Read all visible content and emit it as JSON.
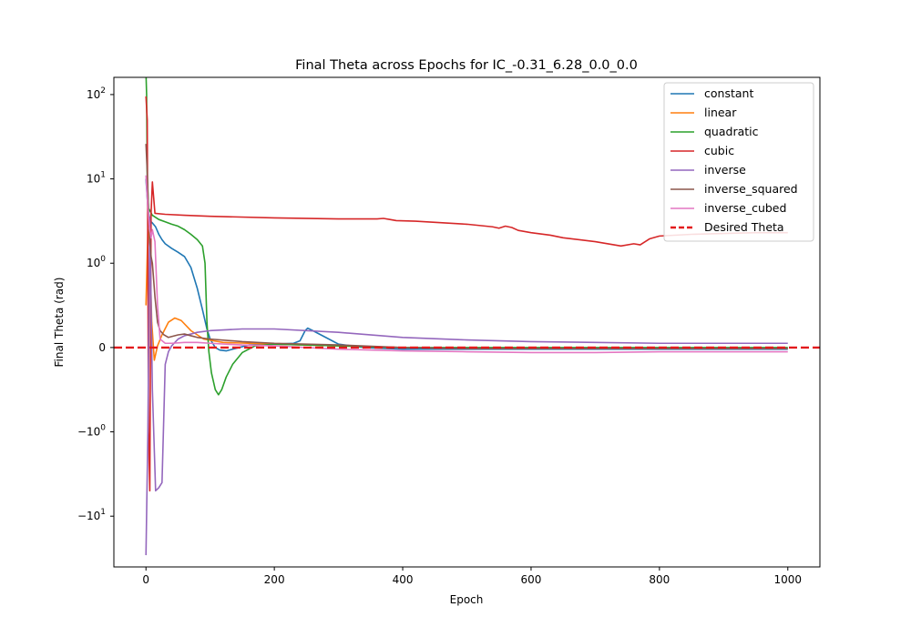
{
  "chart_data": {
    "type": "line",
    "title": "Final Theta across Epochs for IC_-0.31_6.28_0.0_0.0",
    "xlabel": "Epoch",
    "ylabel": "Final Theta (rad)",
    "yscale": "symlog",
    "xlim": [
      -50,
      1050
    ],
    "ylim": [
      -40,
      160
    ],
    "x_ticks": [
      0,
      200,
      400,
      600,
      800,
      1000
    ],
    "y_ticks": [
      {
        "value": 100,
        "label": "10",
        "exp": "2"
      },
      {
        "value": 10,
        "label": "10",
        "exp": "1"
      },
      {
        "value": 1,
        "label": "10",
        "exp": "0"
      },
      {
        "value": 0,
        "label": "0",
        "exp": ""
      },
      {
        "value": -1,
        "label": "−10",
        "exp": "0"
      },
      {
        "value": -10,
        "label": "−10",
        "exp": "1"
      }
    ],
    "legend_position": "upper-right",
    "grid": false,
    "series": [
      {
        "name": "constant",
        "color": "#1f77b4",
        "points": [
          [
            0,
            10
          ],
          [
            3,
            4.5
          ],
          [
            6,
            3.2
          ],
          [
            10,
            3
          ],
          [
            15,
            2.7
          ],
          [
            20,
            2.2
          ],
          [
            25,
            1.9
          ],
          [
            30,
            1.7
          ],
          [
            40,
            1.5
          ],
          [
            50,
            1.35
          ],
          [
            60,
            1.2
          ],
          [
            70,
            0.95
          ],
          [
            80,
            0.7
          ],
          [
            88,
            0.45
          ],
          [
            95,
            0.22
          ],
          [
            100,
            0.1
          ],
          [
            108,
            0.0
          ],
          [
            115,
            -0.03
          ],
          [
            125,
            -0.04
          ],
          [
            140,
            -0.01
          ],
          [
            160,
            0.03
          ],
          [
            200,
            0.04
          ],
          [
            230,
            0.05
          ],
          [
            240,
            0.08
          ],
          [
            248,
            0.2
          ],
          [
            252,
            0.23
          ],
          [
            260,
            0.2
          ],
          [
            280,
            0.12
          ],
          [
            300,
            0.04
          ],
          [
            340,
            0.0
          ],
          [
            400,
            -0.02
          ],
          [
            500,
            -0.02
          ],
          [
            600,
            -0.02
          ],
          [
            700,
            -0.02
          ],
          [
            800,
            -0.02
          ],
          [
            900,
            -0.02
          ],
          [
            1000,
            -0.02
          ]
        ]
      },
      {
        "name": "linear",
        "color": "#ff7f0e",
        "points": [
          [
            0,
            0.5
          ],
          [
            3,
            2.5
          ],
          [
            6,
            1.5
          ],
          [
            9,
            0.3
          ],
          [
            13,
            -0.15
          ],
          [
            18,
            0.02
          ],
          [
            25,
            0.15
          ],
          [
            35,
            0.3
          ],
          [
            45,
            0.35
          ],
          [
            55,
            0.32
          ],
          [
            70,
            0.2
          ],
          [
            90,
            0.1
          ],
          [
            120,
            0.06
          ],
          [
            200,
            0.04
          ],
          [
            300,
            0.02
          ],
          [
            400,
            0.0
          ],
          [
            500,
            -0.01
          ],
          [
            600,
            -0.01
          ],
          [
            700,
            -0.01
          ],
          [
            800,
            -0.01
          ],
          [
            900,
            -0.01
          ],
          [
            1000,
            -0.01
          ]
        ]
      },
      {
        "name": "quadratic",
        "color": "#2ca02c",
        "points": [
          [
            0,
            180
          ],
          [
            1,
            100
          ],
          [
            2,
            10
          ],
          [
            4,
            4.5
          ],
          [
            10,
            3.7
          ],
          [
            20,
            3.3
          ],
          [
            30,
            3.1
          ],
          [
            40,
            2.9
          ],
          [
            50,
            2.75
          ],
          [
            60,
            2.5
          ],
          [
            70,
            2.2
          ],
          [
            80,
            1.9
          ],
          [
            88,
            1.6
          ],
          [
            92,
            1.0
          ],
          [
            95,
            0.3
          ],
          [
            98,
            -0.05
          ],
          [
            102,
            -0.3
          ],
          [
            108,
            -0.5
          ],
          [
            113,
            -0.56
          ],
          [
            118,
            -0.5
          ],
          [
            125,
            -0.35
          ],
          [
            135,
            -0.2
          ],
          [
            150,
            -0.06
          ],
          [
            170,
            0.02
          ],
          [
            200,
            0.04
          ],
          [
            300,
            0.02
          ],
          [
            400,
            0.0
          ],
          [
            500,
            0.0
          ],
          [
            600,
            0.0
          ],
          [
            700,
            0.0
          ],
          [
            800,
            0.0
          ],
          [
            900,
            0.0
          ],
          [
            1000,
            0.0
          ]
        ]
      },
      {
        "name": "cubic",
        "color": "#d62728",
        "points": [
          [
            0,
            95
          ],
          [
            2,
            50
          ],
          [
            4,
            -1
          ],
          [
            6,
            -5
          ],
          [
            8,
            4
          ],
          [
            10,
            9.2
          ],
          [
            12,
            6
          ],
          [
            14,
            3.9
          ],
          [
            30,
            3.8
          ],
          [
            60,
            3.7
          ],
          [
            100,
            3.6
          ],
          [
            200,
            3.45
          ],
          [
            300,
            3.35
          ],
          [
            360,
            3.35
          ],
          [
            370,
            3.4
          ],
          [
            380,
            3.3
          ],
          [
            390,
            3.2
          ],
          [
            420,
            3.15
          ],
          [
            450,
            3.05
          ],
          [
            500,
            2.9
          ],
          [
            540,
            2.7
          ],
          [
            550,
            2.6
          ],
          [
            560,
            2.75
          ],
          [
            570,
            2.65
          ],
          [
            580,
            2.45
          ],
          [
            600,
            2.3
          ],
          [
            630,
            2.15
          ],
          [
            650,
            2.0
          ],
          [
            700,
            1.8
          ],
          [
            740,
            1.6
          ],
          [
            760,
            1.7
          ],
          [
            770,
            1.65
          ],
          [
            785,
            1.95
          ],
          [
            800,
            2.1
          ],
          [
            850,
            2.2
          ],
          [
            900,
            2.25
          ],
          [
            950,
            2.3
          ],
          [
            1000,
            2.3
          ]
        ]
      },
      {
        "name": "inverse",
        "color": "#9467bd",
        "points": [
          [
            0,
            -29
          ],
          [
            3,
            -1
          ],
          [
            6,
            3.5
          ],
          [
            10,
            -0.5
          ],
          [
            15,
            -5
          ],
          [
            20,
            -4.6
          ],
          [
            25,
            -4
          ],
          [
            30,
            -0.2
          ],
          [
            35,
            -0.05
          ],
          [
            40,
            0.02
          ],
          [
            50,
            0.1
          ],
          [
            60,
            0.14
          ],
          [
            70,
            0.16
          ],
          [
            80,
            0.18
          ],
          [
            100,
            0.2
          ],
          [
            150,
            0.22
          ],
          [
            200,
            0.22
          ],
          [
            300,
            0.18
          ],
          [
            400,
            0.12
          ],
          [
            500,
            0.09
          ],
          [
            600,
            0.07
          ],
          [
            700,
            0.06
          ],
          [
            800,
            0.05
          ],
          [
            900,
            0.05
          ],
          [
            1000,
            0.05
          ]
        ]
      },
      {
        "name": "inverse_squared",
        "color": "#8c564b",
        "points": [
          [
            0,
            26
          ],
          [
            2,
            12
          ],
          [
            4,
            4
          ],
          [
            6,
            2
          ],
          [
            8,
            1.2
          ],
          [
            10,
            1.0
          ],
          [
            14,
            0.6
          ],
          [
            18,
            0.3
          ],
          [
            22,
            0.2
          ],
          [
            28,
            0.15
          ],
          [
            35,
            0.12
          ],
          [
            50,
            0.15
          ],
          [
            60,
            0.16
          ],
          [
            70,
            0.14
          ],
          [
            80,
            0.12
          ],
          [
            100,
            0.1
          ],
          [
            150,
            0.07
          ],
          [
            200,
            0.05
          ],
          [
            300,
            0.03
          ],
          [
            400,
            0.0
          ],
          [
            500,
            -0.01
          ],
          [
            600,
            -0.01
          ],
          [
            700,
            -0.01
          ],
          [
            800,
            -0.01
          ],
          [
            900,
            -0.01
          ],
          [
            1000,
            -0.01
          ]
        ]
      },
      {
        "name": "inverse_cubed",
        "color": "#e377c2",
        "points": [
          [
            0,
            11
          ],
          [
            2,
            6
          ],
          [
            4,
            3.5
          ],
          [
            6,
            2.5
          ],
          [
            8,
            2
          ],
          [
            10,
            2.5
          ],
          [
            14,
            1.8
          ],
          [
            18,
            0.5
          ],
          [
            22,
            0.1
          ],
          [
            30,
            0.05
          ],
          [
            40,
            0.05
          ],
          [
            60,
            0.06
          ],
          [
            80,
            0.06
          ],
          [
            100,
            0.05
          ],
          [
            150,
            0.03
          ],
          [
            200,
            0.02
          ],
          [
            300,
            -0.02
          ],
          [
            400,
            -0.04
          ],
          [
            500,
            -0.05
          ],
          [
            600,
            -0.06
          ],
          [
            700,
            -0.06
          ],
          [
            800,
            -0.05
          ],
          [
            900,
            -0.05
          ],
          [
            1000,
            -0.05
          ]
        ]
      }
    ],
    "reference_line": {
      "name": "Desired Theta",
      "value": 0,
      "color": "#e31a1c",
      "style": "dashed"
    }
  }
}
